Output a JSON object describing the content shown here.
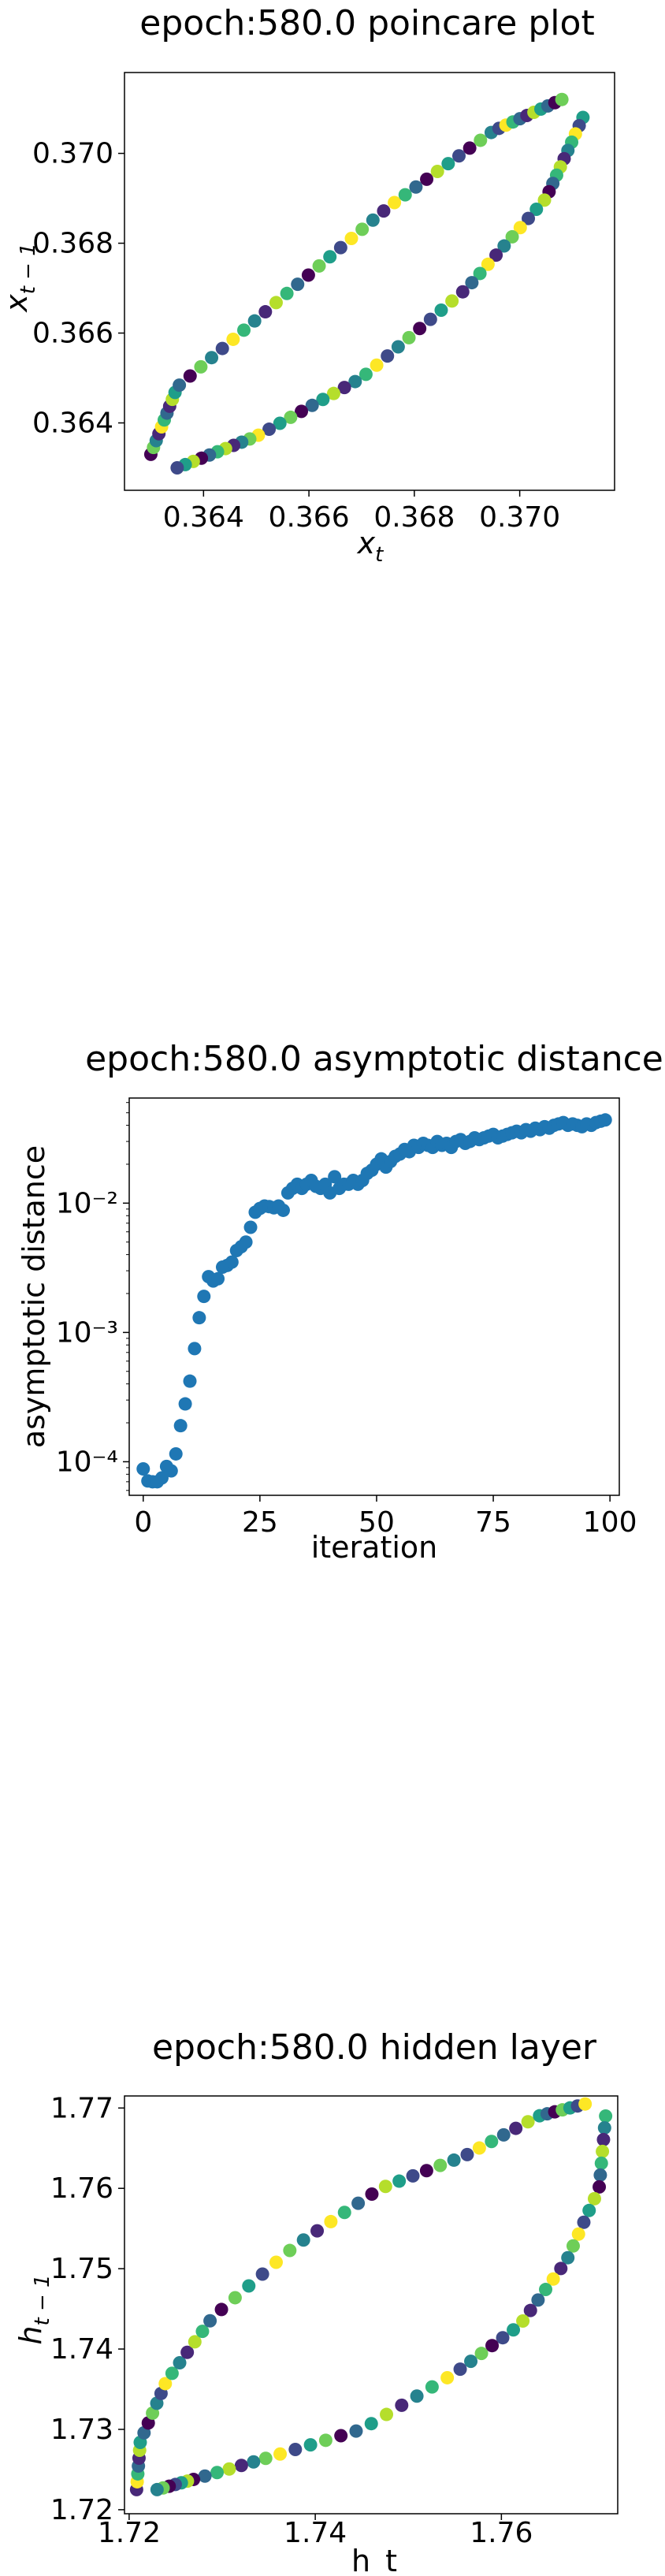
{
  "palette": {
    "viridis": [
      "#440154",
      "#482878",
      "#3e4a89",
      "#31688e",
      "#26828e",
      "#1f9e89",
      "#35b779",
      "#6ece58",
      "#b5de2b",
      "#fde725"
    ],
    "dot": "#1f77b4"
  },
  "chart_data": [
    {
      "type": "scatter",
      "title": "epoch:580.0 poincare plot",
      "xlabel": "x",
      "xlabel_sub": "t",
      "ylabel": "x",
      "ylabel_sub": "t − 1",
      "xlim": [
        0.3625,
        0.3718
      ],
      "ylim": [
        0.3625,
        0.3718
      ],
      "xticks": [
        "0.364",
        "0.366",
        "0.368",
        "0.370"
      ],
      "yticks": [
        "0.364",
        "0.366",
        "0.368",
        "0.370"
      ],
      "color_by": "iteration (viridis)",
      "loop": {
        "lower_left": [
          0.363,
          0.363
        ],
        "upper_right": [
          0.3711,
          0.3712
        ],
        "upper_path": [
          [
            0.363,
            0.3633
          ],
          [
            0.3635,
            0.3648
          ],
          [
            0.3655,
            0.3668
          ],
          [
            0.3675,
            0.3688
          ],
          [
            0.3695,
            0.3705
          ],
          [
            0.3708,
            0.3712
          ]
        ],
        "lower_path": [
          [
            0.3712,
            0.3708
          ],
          [
            0.3705,
            0.369
          ],
          [
            0.369,
            0.367
          ],
          [
            0.367,
            0.365
          ],
          [
            0.365,
            0.3637
          ],
          [
            0.3635,
            0.363
          ]
        ]
      },
      "n_points": 100
    },
    {
      "type": "scatter",
      "title": "epoch:580.0 asymptotic distance",
      "xlabel": "iteration",
      "ylabel": "asymptotic distance",
      "yscale": "log",
      "xlim": [
        -3,
        102
      ],
      "ylim": [
        5.5e-05,
        0.065
      ],
      "xticks": [
        "0",
        "25",
        "50",
        "75",
        "100"
      ],
      "yticks": [
        "10⁻²",
        "10⁻³",
        "10⁻⁴"
      ],
      "x": [
        0,
        1,
        2,
        3,
        4,
        5,
        6,
        7,
        8,
        9,
        10,
        11,
        12,
        13,
        14,
        15,
        16,
        17,
        18,
        19,
        20,
        21,
        22,
        23,
        24,
        25,
        26,
        27,
        28,
        29,
        30,
        31,
        32,
        33,
        34,
        35,
        36,
        37,
        38,
        39,
        40,
        41,
        42,
        43,
        44,
        45,
        46,
        47,
        48,
        49,
        50,
        51,
        52,
        53,
        54,
        55,
        56,
        57,
        58,
        59,
        60,
        61,
        62,
        63,
        64,
        65,
        66,
        67,
        68,
        69,
        70,
        71,
        72,
        73,
        74,
        75,
        76,
        77,
        78,
        79,
        80,
        81,
        82,
        83,
        84,
        85,
        86,
        87,
        88,
        89,
        90,
        91,
        92,
        93,
        94,
        95,
        96,
        97,
        98,
        99
      ],
      "y": [
        8.8e-05,
        7.1e-05,
        7e-05,
        7e-05,
        7.5e-05,
        9.2e-05,
        8.5e-05,
        0.000115,
        0.00019,
        0.00028,
        0.00042,
        0.00075,
        0.0013,
        0.0019,
        0.0027,
        0.0025,
        0.0026,
        0.0032,
        0.0033,
        0.0035,
        0.0043,
        0.0046,
        0.005,
        0.0065,
        0.0085,
        0.0091,
        0.0095,
        0.0094,
        0.0092,
        0.0095,
        0.0088,
        0.012,
        0.013,
        0.014,
        0.013,
        0.014,
        0.015,
        0.0135,
        0.013,
        0.014,
        0.012,
        0.016,
        0.013,
        0.014,
        0.014,
        0.015,
        0.014,
        0.015,
        0.017,
        0.018,
        0.02,
        0.022,
        0.019,
        0.021,
        0.023,
        0.024,
        0.026,
        0.025,
        0.028,
        0.027,
        0.029,
        0.028,
        0.027,
        0.03,
        0.028,
        0.029,
        0.027,
        0.03,
        0.031,
        0.029,
        0.03,
        0.032,
        0.031,
        0.032,
        0.033,
        0.034,
        0.032,
        0.033,
        0.034,
        0.035,
        0.036,
        0.035,
        0.037,
        0.036,
        0.038,
        0.037,
        0.039,
        0.038,
        0.04,
        0.041,
        0.042,
        0.04,
        0.041,
        0.04,
        0.039,
        0.041,
        0.04,
        0.042,
        0.043,
        0.044
      ]
    },
    {
      "type": "scatter",
      "title": "epoch:580.0 hidden layer",
      "xlabel": "h_t",
      "ylabel": "h",
      "ylabel_sub": "t − 1",
      "xlim": [
        1.7195,
        1.7725
      ],
      "ylim": [
        1.7195,
        1.7715
      ],
      "xticks": [
        "1.72",
        "1.74",
        "1.76"
      ],
      "yticks": [
        "1.72",
        "1.73",
        "1.74",
        "1.75",
        "1.76",
        "1.77"
      ],
      "color_by": "iteration (viridis)",
      "loop": {
        "lower_left": [
          1.7215,
          1.7225
        ],
        "upper_right": [
          1.7695,
          1.7705
        ],
        "upper_path": [
          [
            1.7208,
            1.7225
          ],
          [
            1.7212,
            1.7285
          ],
          [
            1.724,
            1.736
          ],
          [
            1.729,
            1.744
          ],
          [
            1.738,
            1.753
          ],
          [
            1.747,
            1.76
          ],
          [
            1.756,
            1.764
          ],
          [
            1.764,
            1.769
          ],
          [
            1.769,
            1.7705
          ]
        ],
        "lower_path": [
          [
            1.7712,
            1.769
          ],
          [
            1.7705,
            1.76
          ],
          [
            1.767,
            1.751
          ],
          [
            1.762,
            1.743
          ],
          [
            1.755,
            1.737
          ],
          [
            1.745,
            1.73
          ],
          [
            1.735,
            1.7265
          ],
          [
            1.727,
            1.7238
          ],
          [
            1.723,
            1.7225
          ]
        ]
      },
      "n_points": 100
    }
  ]
}
